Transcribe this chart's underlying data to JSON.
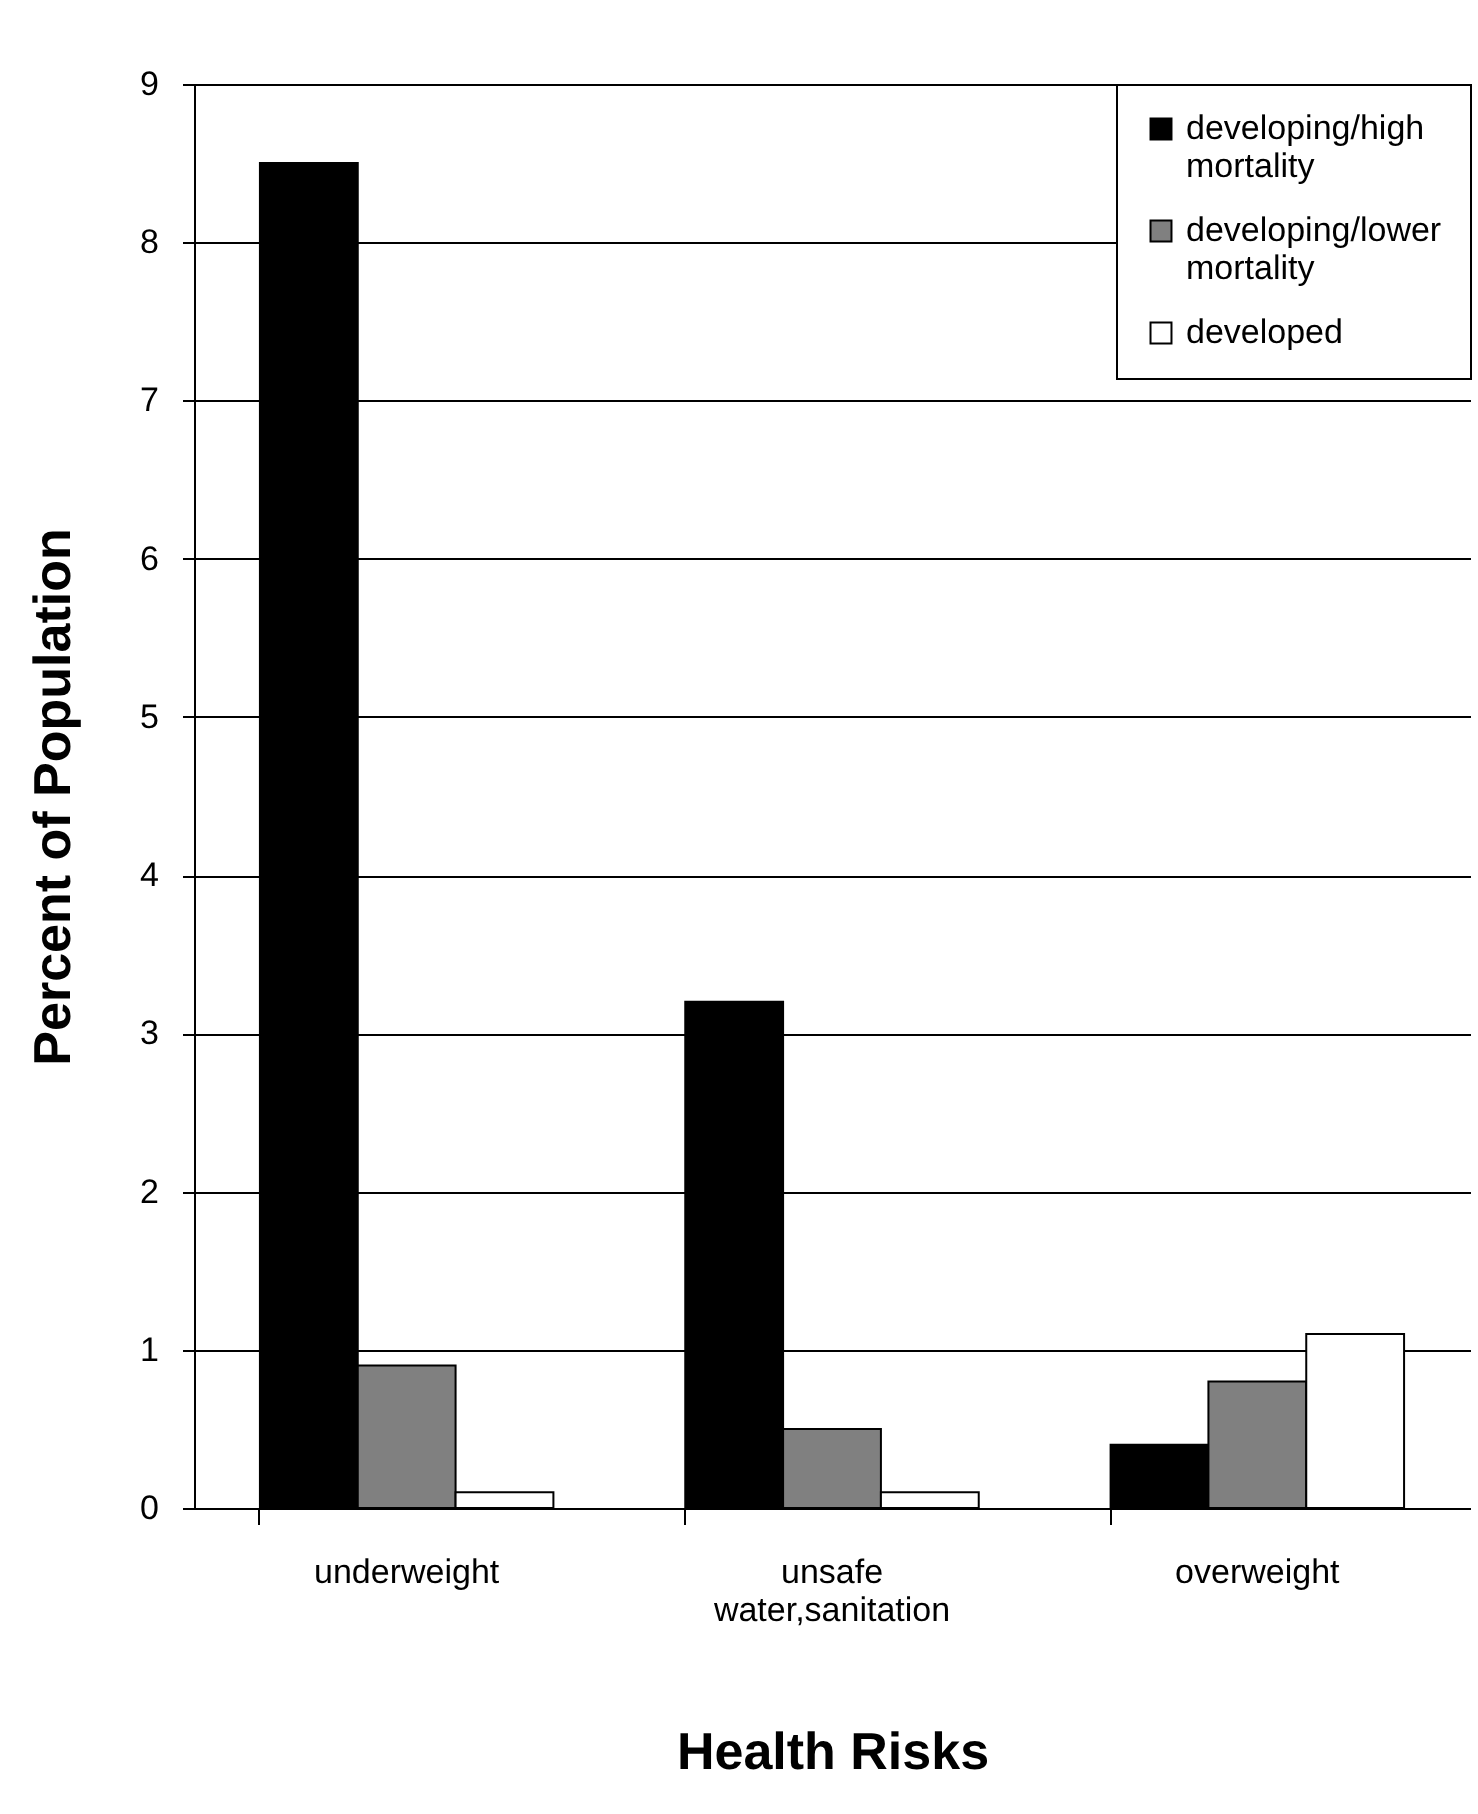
{
  "chart_data": {
    "type": "bar",
    "xlabel": "Health Risks",
    "ylabel": "Percent of Population",
    "categories": [
      "underweight",
      "unsafe water,sanitation",
      "overweight"
    ],
    "series": [
      {
        "name": "developing/high mortality",
        "color": "#000000",
        "values": [
          8.5,
          3.2,
          0.4
        ]
      },
      {
        "name": "developing/lower mortality",
        "color": "#808080",
        "values": [
          0.9,
          0.5,
          0.8
        ]
      },
      {
        "name": "developed",
        "color": "#ffffff",
        "values": [
          0.1,
          0.1,
          1.1
        ]
      }
    ],
    "ylim": [
      0,
      9
    ],
    "yticks": [
      0,
      1,
      2,
      3,
      4,
      5,
      6,
      7,
      8,
      9
    ],
    "grid": "y",
    "legend": "top right"
  }
}
